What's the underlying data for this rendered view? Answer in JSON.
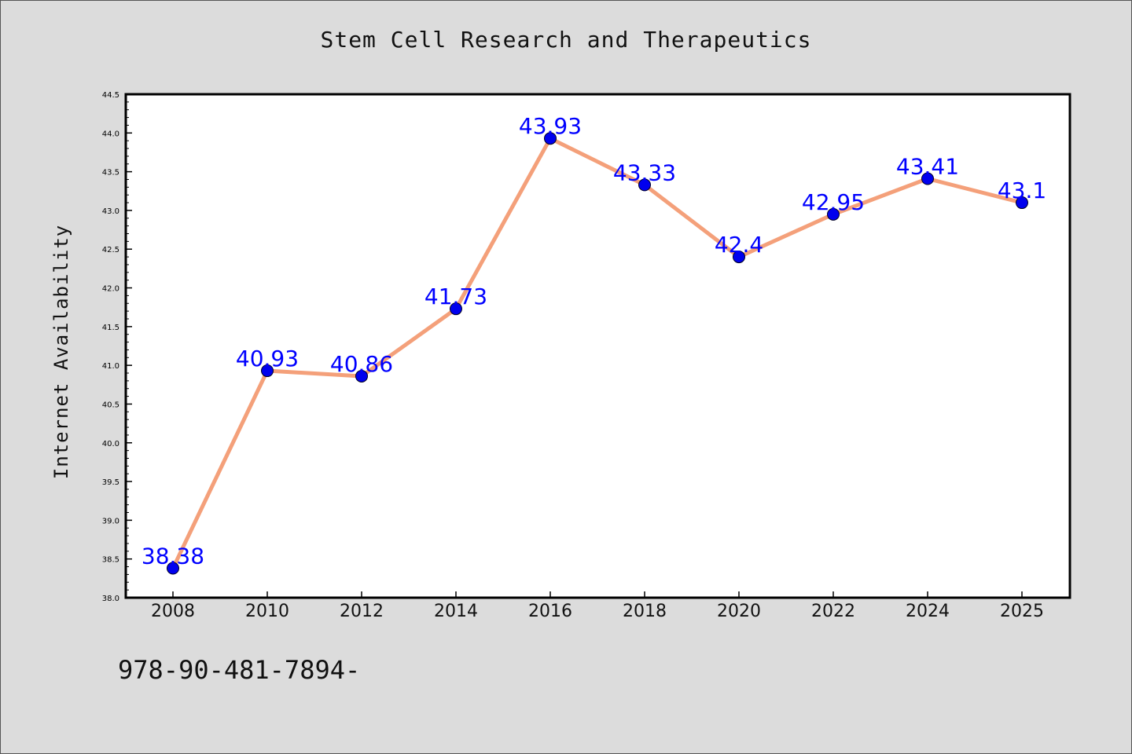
{
  "chart_data": {
    "type": "line",
    "title": "Stem Cell Research and Therapeutics",
    "xlabel": "",
    "ylabel": "Internet Availability",
    "categories": [
      "2008",
      "2010",
      "2012",
      "2014",
      "2016",
      "2018",
      "2020",
      "2022",
      "2024",
      "2025"
    ],
    "series": [
      {
        "values": [
          38.38,
          40.93,
          40.86,
          41.73,
          43.93,
          43.33,
          42.4,
          42.95,
          43.41,
          43.1
        ]
      }
    ],
    "data_labels": [
      "38.38",
      "40.93",
      "40.86",
      "41.73",
      "43.93",
      "43.33",
      "42.4",
      "42.95",
      "43.41",
      "43.1"
    ],
    "ylim": [
      38.0,
      44.5
    ],
    "yticks": [
      "38.0",
      "38.5",
      "39.0",
      "39.5",
      "40.0",
      "40.5",
      "41.0",
      "41.5",
      "42.0",
      "42.5",
      "43.0",
      "43.5",
      "44.0",
      "44.5"
    ],
    "grid": false,
    "legend": "none",
    "colors": {
      "line": "#f4a07a",
      "marker": "#0000ee",
      "data_label": "#0000ff",
      "background": "#dcdcdc",
      "plot_background": "#ffffff"
    }
  },
  "footer": {
    "code": "978-90-481-7894-"
  }
}
